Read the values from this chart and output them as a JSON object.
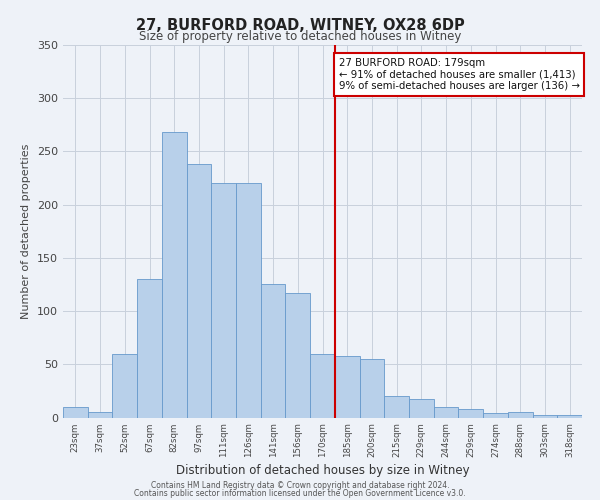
{
  "title": "27, BURFORD ROAD, WITNEY, OX28 6DP",
  "subtitle": "Size of property relative to detached houses in Witney",
  "xlabel": "Distribution of detached houses by size in Witney",
  "ylabel": "Number of detached properties",
  "bin_labels": [
    "23sqm",
    "37sqm",
    "52sqm",
    "67sqm",
    "82sqm",
    "97sqm",
    "111sqm",
    "126sqm",
    "141sqm",
    "156sqm",
    "170sqm",
    "185sqm",
    "200sqm",
    "215sqm",
    "229sqm",
    "244sqm",
    "259sqm",
    "274sqm",
    "288sqm",
    "303sqm",
    "318sqm"
  ],
  "bar_heights": [
    10,
    5,
    60,
    130,
    268,
    238,
    220,
    220,
    125,
    117,
    60,
    58,
    55,
    20,
    17,
    10,
    8,
    4,
    5,
    2,
    2
  ],
  "bar_color": "#b8d0ea",
  "bar_edge_color": "#6699cc",
  "vline_x": 10.5,
  "vline_color": "#cc0000",
  "annotation_text": "27 BURFORD ROAD: 179sqm\n← 91% of detached houses are smaller (1,413)\n9% of semi-detached houses are larger (136) →",
  "annotation_box_color": "#ffffff",
  "annotation_box_edge_color": "#cc0000",
  "ylim": [
    0,
    350
  ],
  "yticks": [
    0,
    50,
    100,
    150,
    200,
    250,
    300,
    350
  ],
  "bg_color": "#eef2f8",
  "footer1": "Contains HM Land Registry data © Crown copyright and database right 2024.",
  "footer2": "Contains public sector information licensed under the Open Government Licence v3.0."
}
